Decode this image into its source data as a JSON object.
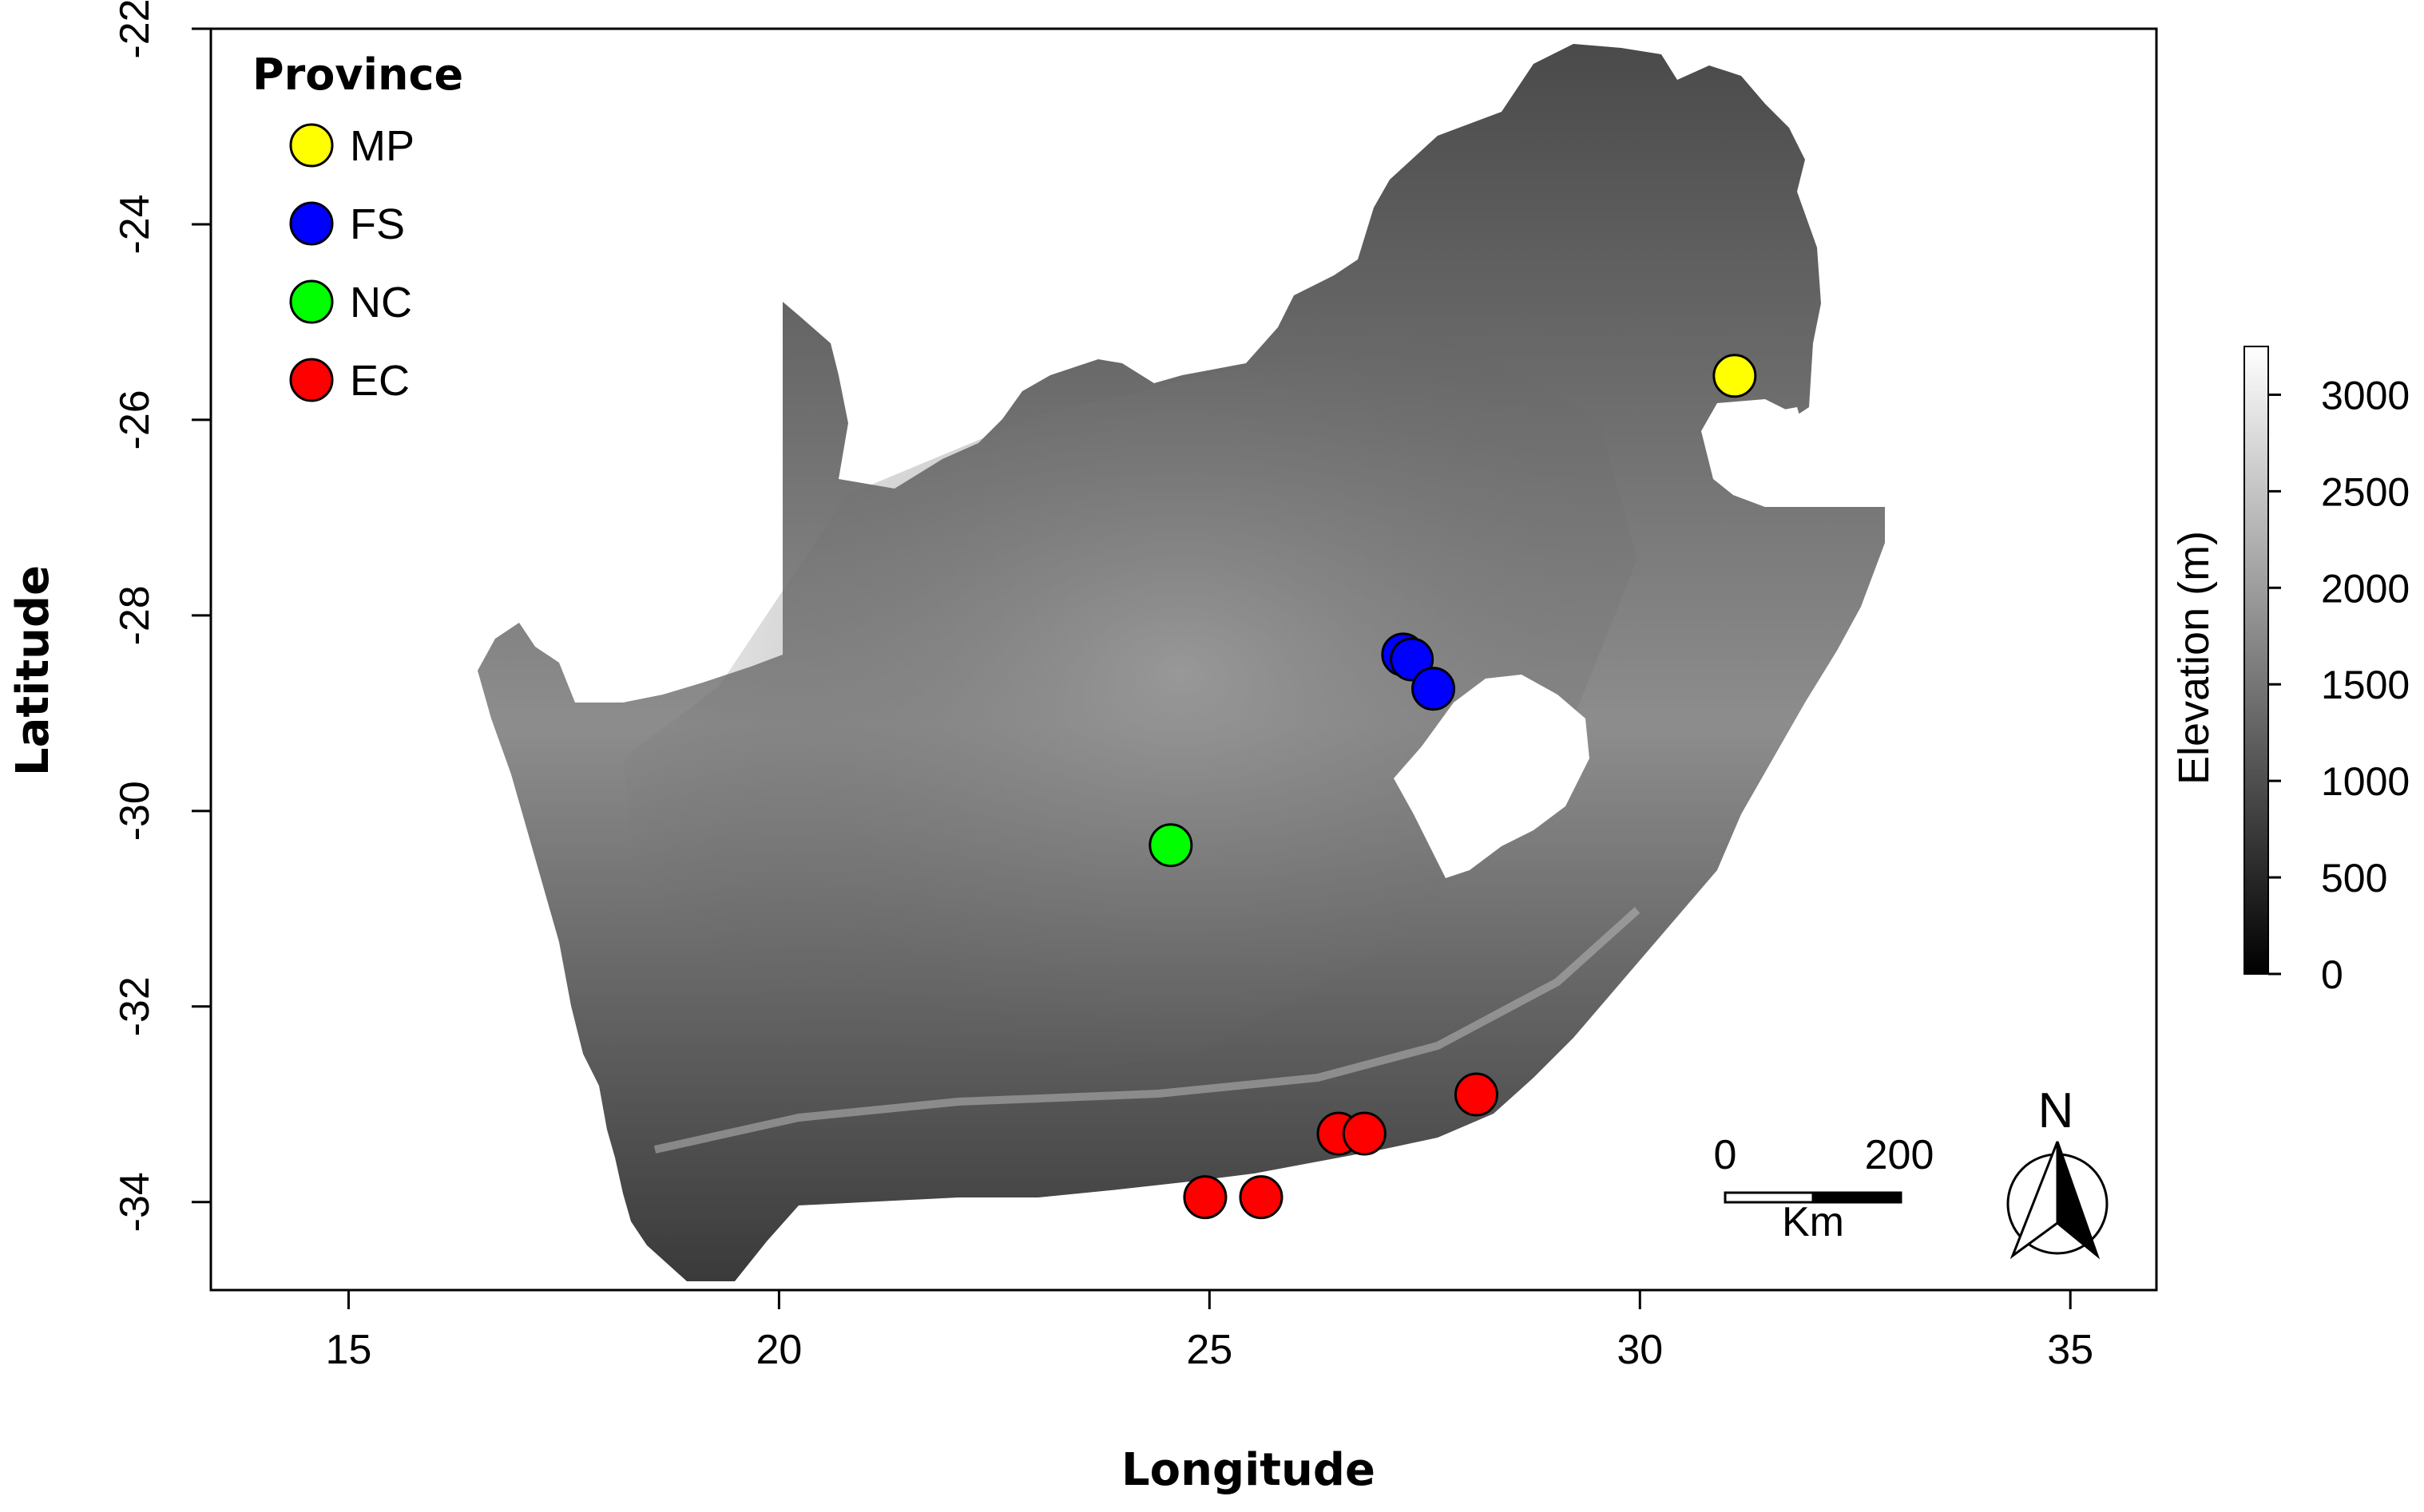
{
  "axes": {
    "x_title": "Longitude",
    "y_title": "Latitude",
    "x_ticks": [
      "15",
      "20",
      "25",
      "30",
      "35"
    ],
    "y_ticks": [
      "-22",
      "-24",
      "-26",
      "-28",
      "-30",
      "-32",
      "-34"
    ]
  },
  "legend": {
    "title": "Province",
    "items": [
      {
        "label": "MP",
        "color": "#ffff00"
      },
      {
        "label": "FS",
        "color": "#0000ff"
      },
      {
        "label": "NC",
        "color": "#00ff00"
      },
      {
        "label": "EC",
        "color": "#ff0000"
      }
    ]
  },
  "colorbar": {
    "title": "Elevation (m)",
    "labels": [
      "3000",
      "2500",
      "2000",
      "1500",
      "1000",
      "500",
      "0"
    ]
  },
  "scale_bar": {
    "start_label": "0",
    "end_label": "200",
    "unit_label": "Km"
  },
  "north_arrow": {
    "label": "N"
  },
  "chart_data": {
    "type": "map",
    "xlabel": "Longitude",
    "ylabel": "Latitude",
    "xlim": [
      13.4,
      36.0
    ],
    "ylim": [
      -34.9,
      -22.0
    ],
    "raster": {
      "name": "Elevation (m)",
      "range": [
        0,
        3250
      ],
      "palette": [
        "#000000",
        "#ffffff"
      ]
    },
    "series": [
      {
        "name": "MP",
        "color": "#ffff00",
        "points": [
          [
            31.1,
            -25.55
          ]
        ]
      },
      {
        "name": "FS",
        "color": "#0000ff",
        "points": [
          [
            27.25,
            -28.4
          ],
          [
            27.35,
            -28.45
          ],
          [
            27.6,
            -28.75
          ]
        ]
      },
      {
        "name": "NC",
        "color": "#00ff00",
        "points": [
          [
            24.55,
            -30.35
          ]
        ]
      },
      {
        "name": "EC",
        "color": "#ff0000",
        "points": [
          [
            24.95,
            -33.95
          ],
          [
            25.6,
            -33.95
          ],
          [
            26.5,
            -33.3
          ],
          [
            26.8,
            -33.3
          ],
          [
            28.1,
            -32.9
          ]
        ]
      }
    ],
    "legend_position": "top-left"
  }
}
